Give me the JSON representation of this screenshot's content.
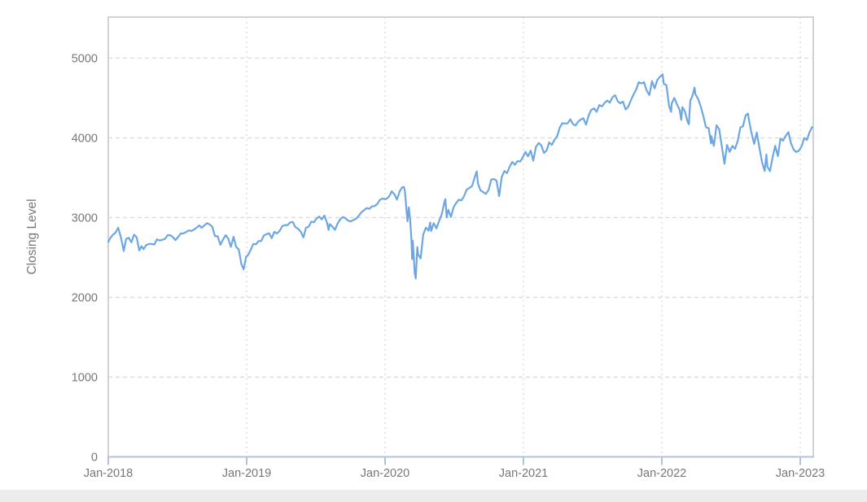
{
  "chart_data": {
    "type": "line",
    "title": "",
    "xlabel": "",
    "ylabel": "Closing Level",
    "legend": "none",
    "grid": "on",
    "x_range": [
      2018.0,
      2023.094
    ],
    "y_range": [
      0,
      5515
    ],
    "x_ticks": [
      {
        "pos": 2018,
        "label": "Jan-2018"
      },
      {
        "pos": 2019,
        "label": "Jan-2019"
      },
      {
        "pos": 2020,
        "label": "Jan-2020"
      },
      {
        "pos": 2021,
        "label": "Jan-2021"
      },
      {
        "pos": 2022,
        "label": "Jan-2022"
      },
      {
        "pos": 2023,
        "label": "Jan-2023"
      }
    ],
    "y_ticks": [
      {
        "pos": 0,
        "label": "0"
      },
      {
        "pos": 1000,
        "label": "1000"
      },
      {
        "pos": 2000,
        "label": "2000"
      },
      {
        "pos": 3000,
        "label": "3000"
      },
      {
        "pos": 4000,
        "label": "4000"
      },
      {
        "pos": 5000,
        "label": "5000"
      }
    ],
    "style": {
      "line_color": "#6da7e3",
      "grid_color": "#dcdcdc",
      "plot_border_color": "#d2d2d2",
      "axis_line_color": "#b3c2dc",
      "tick_color": "#b3c2dc",
      "text_color": "#777777",
      "footer_strip_color": "#ececec",
      "background": "#ffffff"
    },
    "series": [
      {
        "name": "Closing Level",
        "points": [
          [
            2018.0,
            2696
          ],
          [
            2018.014,
            2743
          ],
          [
            2018.033,
            2786
          ],
          [
            2018.052,
            2810
          ],
          [
            2018.071,
            2873
          ],
          [
            2018.09,
            2762
          ],
          [
            2018.104,
            2648
          ],
          [
            2018.112,
            2581
          ],
          [
            2018.129,
            2732
          ],
          [
            2018.148,
            2747
          ],
          [
            2018.167,
            2691
          ],
          [
            2018.186,
            2787
          ],
          [
            2018.205,
            2752
          ],
          [
            2018.224,
            2588
          ],
          [
            2018.24,
            2641
          ],
          [
            2018.255,
            2605
          ],
          [
            2018.274,
            2656
          ],
          [
            2018.295,
            2670
          ],
          [
            2018.314,
            2670
          ],
          [
            2018.333,
            2663
          ],
          [
            2018.352,
            2728
          ],
          [
            2018.371,
            2713
          ],
          [
            2018.39,
            2721
          ],
          [
            2018.41,
            2735
          ],
          [
            2018.429,
            2779
          ],
          [
            2018.448,
            2780
          ],
          [
            2018.467,
            2755
          ],
          [
            2018.486,
            2718
          ],
          [
            2018.505,
            2760
          ],
          [
            2018.524,
            2801
          ],
          [
            2018.543,
            2802
          ],
          [
            2018.562,
            2819
          ],
          [
            2018.581,
            2840
          ],
          [
            2018.6,
            2833
          ],
          [
            2018.619,
            2850
          ],
          [
            2018.638,
            2875
          ],
          [
            2018.657,
            2902
          ],
          [
            2018.676,
            2872
          ],
          [
            2018.695,
            2905
          ],
          [
            2018.714,
            2930
          ],
          [
            2018.733,
            2914
          ],
          [
            2018.752,
            2886
          ],
          [
            2018.771,
            2767
          ],
          [
            2018.79,
            2768
          ],
          [
            2018.81,
            2659
          ],
          [
            2018.829,
            2723
          ],
          [
            2018.848,
            2781
          ],
          [
            2018.867,
            2736
          ],
          [
            2018.886,
            2632
          ],
          [
            2018.905,
            2760
          ],
          [
            2018.924,
            2633
          ],
          [
            2018.943,
            2600
          ],
          [
            2018.962,
            2417
          ],
          [
            2018.978,
            2351
          ],
          [
            2018.995,
            2506
          ],
          [
            2019.01,
            2532
          ],
          [
            2019.029,
            2596
          ],
          [
            2019.048,
            2671
          ],
          [
            2019.067,
            2665
          ],
          [
            2019.086,
            2706
          ],
          [
            2019.105,
            2708
          ],
          [
            2019.124,
            2776
          ],
          [
            2019.143,
            2793
          ],
          [
            2019.162,
            2804
          ],
          [
            2019.181,
            2743
          ],
          [
            2019.2,
            2822
          ],
          [
            2019.219,
            2801
          ],
          [
            2019.238,
            2834
          ],
          [
            2019.257,
            2893
          ],
          [
            2019.276,
            2907
          ],
          [
            2019.295,
            2905
          ],
          [
            2019.314,
            2940
          ],
          [
            2019.333,
            2946
          ],
          [
            2019.352,
            2881
          ],
          [
            2019.371,
            2860
          ],
          [
            2019.39,
            2826
          ],
          [
            2019.41,
            2752
          ],
          [
            2019.429,
            2873
          ],
          [
            2019.448,
            2887
          ],
          [
            2019.467,
            2950
          ],
          [
            2019.486,
            2942
          ],
          [
            2019.505,
            2990
          ],
          [
            2019.524,
            3014
          ],
          [
            2019.543,
            2977
          ],
          [
            2019.562,
            3026
          ],
          [
            2019.581,
            2932
          ],
          [
            2019.592,
            2845
          ],
          [
            2019.6,
            2919
          ],
          [
            2019.619,
            2889
          ],
          [
            2019.638,
            2847
          ],
          [
            2019.657,
            2926
          ],
          [
            2019.676,
            2979
          ],
          [
            2019.695,
            3007
          ],
          [
            2019.714,
            2992
          ],
          [
            2019.733,
            2962
          ],
          [
            2019.752,
            2952
          ],
          [
            2019.771,
            2970
          ],
          [
            2019.79,
            2986
          ],
          [
            2019.81,
            3023
          ],
          [
            2019.829,
            3067
          ],
          [
            2019.848,
            3093
          ],
          [
            2019.867,
            3120
          ],
          [
            2019.886,
            3110
          ],
          [
            2019.905,
            3141
          ],
          [
            2019.924,
            3146
          ],
          [
            2019.943,
            3169
          ],
          [
            2019.962,
            3221
          ],
          [
            2019.981,
            3240
          ],
          [
            2020.0,
            3231
          ],
          [
            2020.01,
            3235
          ],
          [
            2020.029,
            3265
          ],
          [
            2020.048,
            3330
          ],
          [
            2020.067,
            3295
          ],
          [
            2020.086,
            3226
          ],
          [
            2020.105,
            3328
          ],
          [
            2020.124,
            3380
          ],
          [
            2020.136,
            3386
          ],
          [
            2020.143,
            3338
          ],
          [
            2020.162,
            2954
          ],
          [
            2020.172,
            3130
          ],
          [
            2020.181,
            2972
          ],
          [
            2020.19,
            2741
          ],
          [
            2020.196,
            2480
          ],
          [
            2020.2,
            2711
          ],
          [
            2020.207,
            2529
          ],
          [
            2020.214,
            2305
          ],
          [
            2020.222,
            2237
          ],
          [
            2020.233,
            2630
          ],
          [
            2020.238,
            2541
          ],
          [
            2020.257,
            2489
          ],
          [
            2020.276,
            2790
          ],
          [
            2020.295,
            2875
          ],
          [
            2020.314,
            2837
          ],
          [
            2020.326,
            2940
          ],
          [
            2020.333,
            2831
          ],
          [
            2020.352,
            2930
          ],
          [
            2020.371,
            2864
          ],
          [
            2020.39,
            2955
          ],
          [
            2020.41,
            3044
          ],
          [
            2020.429,
            3194
          ],
          [
            2020.436,
            3232
          ],
          [
            2020.445,
            3002
          ],
          [
            2020.457,
            3098
          ],
          [
            2020.476,
            3009
          ],
          [
            2020.495,
            3130
          ],
          [
            2020.514,
            3185
          ],
          [
            2020.533,
            3225
          ],
          [
            2020.552,
            3216
          ],
          [
            2020.571,
            3271
          ],
          [
            2020.59,
            3351
          ],
          [
            2020.61,
            3373
          ],
          [
            2020.629,
            3397
          ],
          [
            2020.648,
            3508
          ],
          [
            2020.662,
            3580
          ],
          [
            2020.671,
            3427
          ],
          [
            2020.69,
            3341
          ],
          [
            2020.71,
            3319
          ],
          [
            2020.729,
            3298
          ],
          [
            2020.748,
            3348
          ],
          [
            2020.767,
            3477
          ],
          [
            2020.786,
            3484
          ],
          [
            2020.805,
            3465
          ],
          [
            2020.824,
            3270
          ],
          [
            2020.843,
            3509
          ],
          [
            2020.862,
            3585
          ],
          [
            2020.881,
            3558
          ],
          [
            2020.9,
            3638
          ],
          [
            2020.919,
            3699
          ],
          [
            2020.938,
            3663
          ],
          [
            2020.957,
            3709
          ],
          [
            2020.976,
            3703
          ],
          [
            2020.995,
            3756
          ],
          [
            2021.014,
            3825
          ],
          [
            2021.033,
            3768
          ],
          [
            2021.052,
            3841
          ],
          [
            2021.071,
            3714
          ],
          [
            2021.09,
            3887
          ],
          [
            2021.11,
            3935
          ],
          [
            2021.129,
            3907
          ],
          [
            2021.148,
            3811
          ],
          [
            2021.167,
            3842
          ],
          [
            2021.186,
            3943
          ],
          [
            2021.205,
            3913
          ],
          [
            2021.224,
            3975
          ],
          [
            2021.243,
            4020
          ],
          [
            2021.262,
            4129
          ],
          [
            2021.281,
            4185
          ],
          [
            2021.3,
            4180
          ],
          [
            2021.319,
            4181
          ],
          [
            2021.338,
            4233
          ],
          [
            2021.357,
            4174
          ],
          [
            2021.376,
            4156
          ],
          [
            2021.395,
            4204
          ],
          [
            2021.414,
            4230
          ],
          [
            2021.433,
            4247
          ],
          [
            2021.452,
            4166
          ],
          [
            2021.471,
            4281
          ],
          [
            2021.49,
            4352
          ],
          [
            2021.51,
            4370
          ],
          [
            2021.529,
            4327
          ],
          [
            2021.548,
            4412
          ],
          [
            2021.567,
            4395
          ],
          [
            2021.586,
            4437
          ],
          [
            2021.605,
            4468
          ],
          [
            2021.624,
            4442
          ],
          [
            2021.643,
            4509
          ],
          [
            2021.662,
            4535
          ],
          [
            2021.681,
            4459
          ],
          [
            2021.7,
            4433
          ],
          [
            2021.719,
            4455
          ],
          [
            2021.738,
            4357
          ],
          [
            2021.757,
            4391
          ],
          [
            2021.776,
            4471
          ],
          [
            2021.795,
            4545
          ],
          [
            2021.814,
            4605
          ],
          [
            2021.833,
            4698
          ],
          [
            2021.852,
            4683
          ],
          [
            2021.871,
            4698
          ],
          [
            2021.89,
            4595
          ],
          [
            2021.91,
            4538
          ],
          [
            2021.929,
            4712
          ],
          [
            2021.948,
            4621
          ],
          [
            2021.967,
            4726
          ],
          [
            2021.986,
            4766
          ],
          [
            2022.005,
            4797
          ],
          [
            2022.014,
            4677
          ],
          [
            2022.033,
            4663
          ],
          [
            2022.052,
            4398
          ],
          [
            2022.067,
            4327
          ],
          [
            2022.071,
            4432
          ],
          [
            2022.09,
            4501
          ],
          [
            2022.11,
            4419
          ],
          [
            2022.129,
            4349
          ],
          [
            2022.14,
            4225
          ],
          [
            2022.148,
            4385
          ],
          [
            2022.167,
            4329
          ],
          [
            2022.186,
            4204
          ],
          [
            2022.195,
            4171
          ],
          [
            2022.205,
            4463
          ],
          [
            2022.224,
            4543
          ],
          [
            2022.236,
            4631
          ],
          [
            2022.243,
            4546
          ],
          [
            2022.262,
            4488
          ],
          [
            2022.281,
            4393
          ],
          [
            2022.3,
            4272
          ],
          [
            2022.319,
            4132
          ],
          [
            2022.338,
            4123
          ],
          [
            2022.355,
            3930
          ],
          [
            2022.357,
            4024
          ],
          [
            2022.376,
            3901
          ],
          [
            2022.395,
            4158
          ],
          [
            2022.414,
            4109
          ],
          [
            2022.433,
            3901
          ],
          [
            2022.452,
            3675
          ],
          [
            2022.471,
            3912
          ],
          [
            2022.49,
            3825
          ],
          [
            2022.51,
            3899
          ],
          [
            2022.529,
            3863
          ],
          [
            2022.548,
            3962
          ],
          [
            2022.567,
            4130
          ],
          [
            2022.586,
            4145
          ],
          [
            2022.605,
            4280
          ],
          [
            2022.622,
            4305
          ],
          [
            2022.629,
            4228
          ],
          [
            2022.648,
            4058
          ],
          [
            2022.667,
            3924
          ],
          [
            2022.686,
            4067
          ],
          [
            2022.705,
            3873
          ],
          [
            2022.724,
            3693
          ],
          [
            2022.743,
            3586
          ],
          [
            2022.755,
            3791
          ],
          [
            2022.762,
            3640
          ],
          [
            2022.781,
            3583
          ],
          [
            2022.8,
            3753
          ],
          [
            2022.819,
            3901
          ],
          [
            2022.838,
            3771
          ],
          [
            2022.857,
            3993
          ],
          [
            2022.876,
            3965
          ],
          [
            2022.895,
            4026
          ],
          [
            2022.914,
            4072
          ],
          [
            2022.933,
            3934
          ],
          [
            2022.952,
            3852
          ],
          [
            2022.971,
            3822
          ],
          [
            2022.99,
            3839
          ],
          [
            2023.01,
            3895
          ],
          [
            2023.029,
            3999
          ],
          [
            2023.048,
            3973
          ],
          [
            2023.067,
            4071
          ],
          [
            2023.086,
            4136
          ]
        ]
      }
    ]
  }
}
